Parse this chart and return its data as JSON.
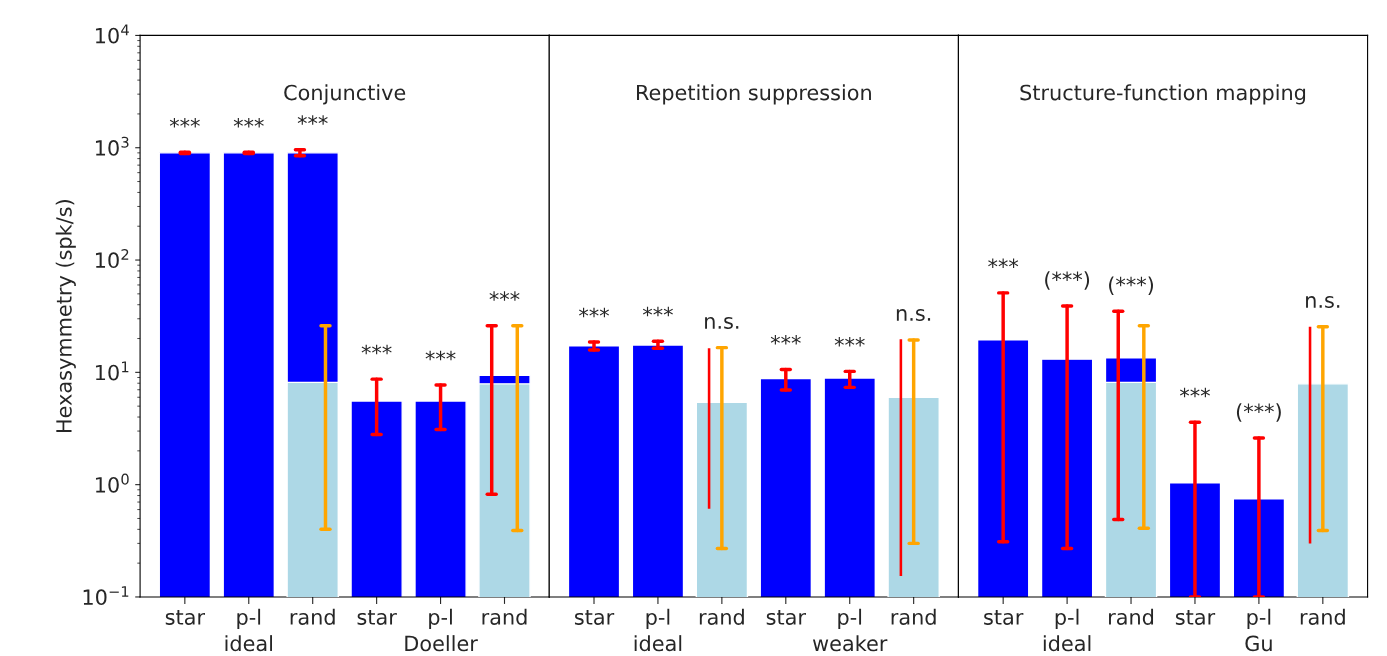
{
  "chart_data": [
    {
      "type": "bar",
      "title": "Conjunctive",
      "ylabel": "Hexasymmetry (spk/s)",
      "categories": [
        "star",
        "p-l",
        "rand",
        "star",
        "p-l",
        "rand"
      ],
      "log": "y",
      "ylim": [
        0.1,
        10000
      ],
      "yticks": [
        {
          "value": 0.1,
          "label": "10$^{−1}$"
        },
        {
          "value": 1,
          "label": "10$^{0}$"
        },
        {
          "value": 10,
          "label": "10$^{1}$"
        },
        {
          "value": 100,
          "label": "10$^{2}$"
        },
        {
          "value": 1000,
          "label": "10$^{3}$"
        },
        {
          "value": 10000,
          "label": "10$^{4}$"
        }
      ],
      "series": [
        {
          "color": "#0000ff",
          "values": [
            900,
            900,
            900,
            5.55,
            5.55,
            9.4
          ],
          "errors": [
            [
              890,
              910
            ],
            [
              890,
              910
            ],
            [
              850,
              960
            ],
            [
              2.8,
              8.7
            ],
            [
              3.1,
              7.7
            ],
            [
              0.82,
              26
            ]
          ]
        },
        {
          "color": "#add8e6",
          "values": [
            null,
            null,
            8.15,
            null,
            null,
            7.9
          ],
          "errors": [
            null,
            null,
            [
              0.4,
              26
            ],
            null,
            null,
            [
              0.39,
              26
            ]
          ]
        }
      ],
      "annotations": [
        "***",
        "***",
        "***",
        "***",
        "***",
        "***",
        "ideal",
        "Doeller"
      ],
      "grid": false,
      "legend": false
    },
    {
      "type": "bar",
      "title": "Repetition suppression",
      "categories": [
        "star",
        "p-l",
        "rand",
        "star",
        "p-l",
        "rand"
      ],
      "log": "y",
      "ylim": [
        0.1,
        10000
      ],
      "tick_labels": "x",
      "series": [
        {
          "color": "#0000ff",
          "values": [
            17.2,
            17.5,
            null,
            8.8,
            8.9,
            null
          ],
          "errors": [
            [
              15.8,
              18.6
            ],
            [
              16.4,
              18.9
            ],
            null,
            [
              6.95,
              10.6
            ],
            [
              7.35,
              10.2
            ],
            null
          ]
        },
        {
          "color": "#add8e6",
          "values": [
            null,
            null,
            5.4,
            null,
            null,
            6.0
          ],
          "errors": [
            null,
            null,
            [
              0.27,
              16.6
            ],
            null,
            null,
            [
              0.3,
              19.4
            ]
          ]
        },
        {
          "type": "bar",
          "color": "#ff0000",
          "base": [
            null,
            null,
            0.61,
            null,
            null,
            0.154
          ],
          "values": [
            null,
            null,
            15.79,
            null,
            null,
            19.546
          ]
        }
      ],
      "annotations": [
        "***",
        "***",
        "n.s.",
        "***",
        "***",
        "n.s.",
        "ideal",
        "weaker"
      ],
      "grid": false,
      "legend": false
    },
    {
      "type": "bar",
      "title": "Structure-function mapping",
      "categories": [
        "star",
        "p-l",
        "rand",
        "star",
        "p-l",
        "rand"
      ],
      "log": "y",
      "ylim": [
        0.1,
        10000
      ],
      "tick_labels": "x",
      "series": [
        {
          "color": "#0000ff",
          "values": [
            19.5,
            13.1,
            13.5,
            1.04,
            0.75,
            null
          ],
          "errors": [
            [
              0.31,
              51
            ],
            [
              0.27,
              39
            ],
            [
              0.49,
              35
            ],
            [
              0.1,
              3.6
            ],
            [
              0.1,
              2.6
            ],
            null
          ]
        },
        {
          "color": "#add8e6",
          "values": [
            null,
            null,
            8.15,
            null,
            null,
            7.9
          ],
          "errors": [
            null,
            null,
            [
              0.41,
              26
            ],
            null,
            null,
            [
              0.39,
              25.5
            ]
          ]
        },
        {
          "type": "bar",
          "color": "#ff0000",
          "base": [
            null,
            null,
            null,
            null,
            null,
            0.3
          ],
          "values": [
            null,
            null,
            null,
            null,
            null,
            25.2
          ]
        }
      ],
      "annotations": [
        "***",
        "(***)",
        "(***)",
        "***",
        "(***)",
        "n.s.",
        "ideal",
        "Gu"
      ],
      "grid": false,
      "legend": false
    }
  ]
}
